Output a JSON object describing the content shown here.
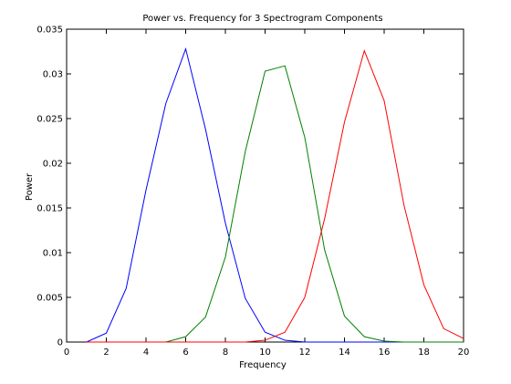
{
  "chart_data": {
    "type": "line",
    "title": "Power vs. Frequency for 3 Spectrogram Components",
    "xlabel": "Frequency",
    "ylabel": "Power",
    "xlim": [
      0,
      20
    ],
    "ylim": [
      0,
      0.035
    ],
    "xticks": [
      "0",
      "2",
      "4",
      "6",
      "8",
      "10",
      "12",
      "14",
      "16",
      "18",
      "20"
    ],
    "yticks": [
      "0",
      "0.005",
      "0.01",
      "0.015",
      "0.02",
      "0.025",
      "0.03",
      "0.035"
    ],
    "grid": false,
    "legend": false,
    "x": [
      1,
      2,
      3,
      4,
      5,
      6,
      7,
      8,
      9,
      10,
      11,
      12,
      13,
      14,
      15,
      16,
      17,
      18,
      19,
      20
    ],
    "series": [
      {
        "color": "#0000ff",
        "values": [
          0.0,
          0.001,
          0.006,
          0.017,
          0.0267,
          0.0328,
          0.0238,
          0.0133,
          0.0049,
          0.0011,
          0.0002,
          0.0,
          0.0,
          0.0,
          0.0,
          0.0,
          0.0,
          0.0,
          0.0,
          0.0
        ]
      },
      {
        "color": "#008000",
        "values": [
          0.0,
          0.0,
          0.0,
          0.0,
          0.0,
          0.0006,
          0.0028,
          0.0095,
          0.0213,
          0.0303,
          0.0309,
          0.0229,
          0.0103,
          0.0029,
          0.0006,
          0.0001,
          0.0,
          0.0,
          0.0,
          0.0
        ]
      },
      {
        "color": "#ff0000",
        "values": [
          0.0,
          0.0,
          0.0,
          0.0,
          0.0,
          0.0,
          0.0,
          0.0,
          0.0,
          0.0002,
          0.0011,
          0.005,
          0.0138,
          0.0246,
          0.0326,
          0.027,
          0.0153,
          0.0064,
          0.0015,
          0.0004
        ]
      }
    ]
  }
}
